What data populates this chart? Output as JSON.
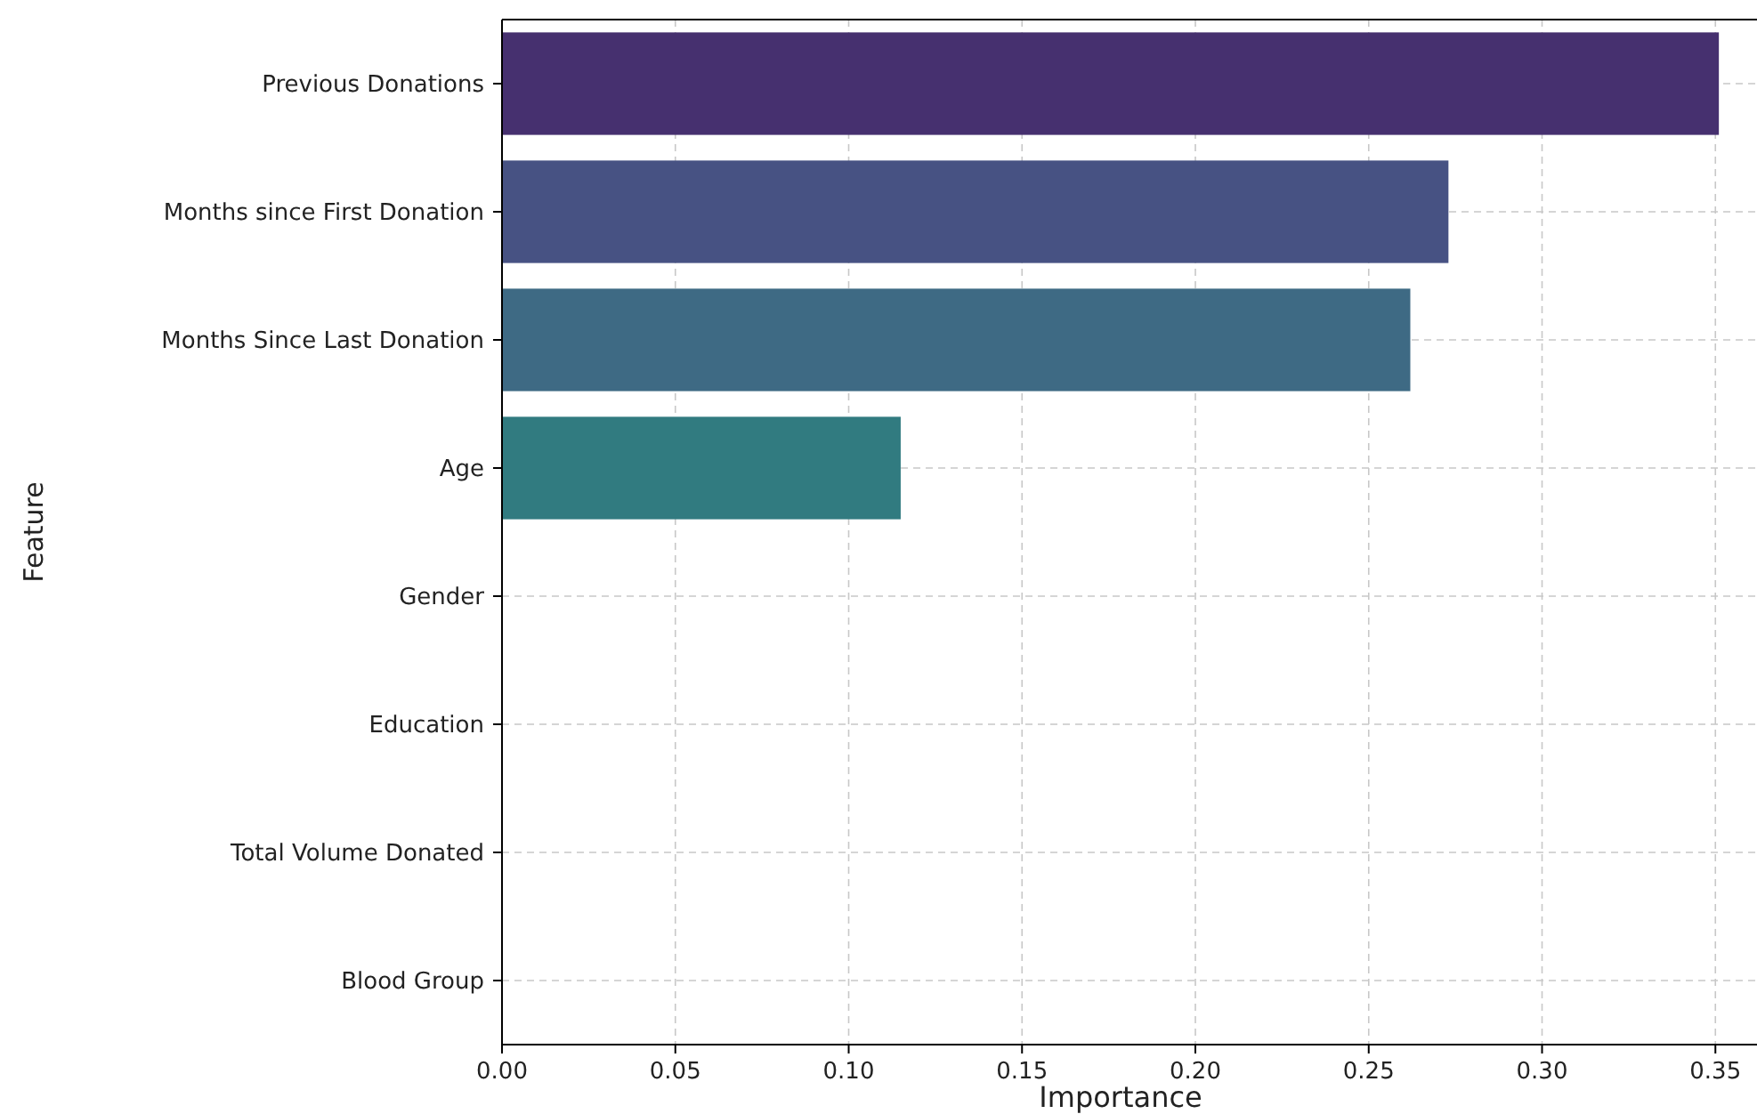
{
  "chart_data": {
    "type": "bar",
    "orientation": "horizontal",
    "xlabel": "Importance",
    "ylabel": "Feature",
    "categories": [
      "Previous Donations",
      "Months since First Donation",
      "Months Since Last Donation",
      "Age",
      "Gender",
      "Education",
      "Total Volume Donated",
      "Blood Group"
    ],
    "values": [
      0.351,
      0.273,
      0.262,
      0.115,
      0,
      0,
      0,
      0
    ],
    "colors": [
      "#46306f",
      "#475283",
      "#3e6a84",
      "#317b80",
      "#2a8c7f",
      "#23a07a",
      "#45b66d",
      "#7ccb55"
    ],
    "xlim": [
      0,
      0.362
    ],
    "xticks": [
      {
        "value": 0,
        "label": "0.00"
      },
      {
        "value": 0.05,
        "label": "0.05"
      },
      {
        "value": 0.1,
        "label": "0.10"
      },
      {
        "value": 0.15,
        "label": "0.15"
      },
      {
        "value": 0.2,
        "label": "0.20"
      },
      {
        "value": 0.25,
        "label": "0.25"
      },
      {
        "value": 0.3,
        "label": "0.30"
      },
      {
        "value": 0.35,
        "label": "0.35"
      }
    ],
    "grid": true
  }
}
